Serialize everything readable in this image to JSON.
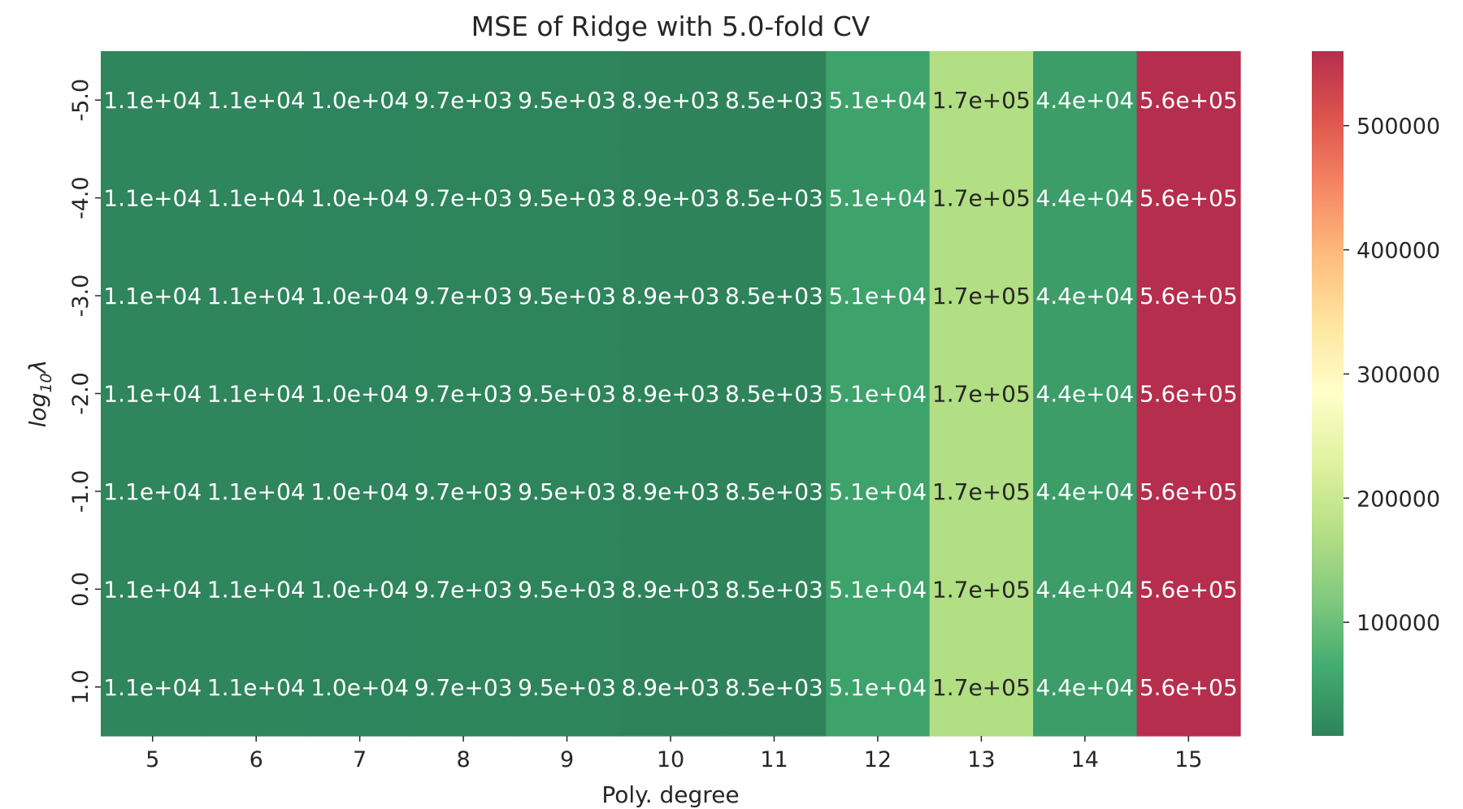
{
  "chart_data": {
    "type": "heatmap",
    "title": "MSE of Ridge with 5.0-fold CV",
    "xlabel": "Poly. degree",
    "ylabel_main": "log",
    "ylabel_sub": "10",
    "ylabel_greek": "λ",
    "x_categories": [
      "5",
      "6",
      "7",
      "8",
      "9",
      "10",
      "11",
      "12",
      "13",
      "14",
      "15"
    ],
    "y_categories": [
      "-5.0",
      "-4.0",
      "-3.0",
      "-2.0",
      "-1.0",
      "0.0",
      "1.0"
    ],
    "values": [
      [
        11000,
        11000,
        10000,
        9700,
        9500,
        8900,
        8500,
        51000,
        170000,
        44000,
        560000
      ],
      [
        11000,
        11000,
        10000,
        9700,
        9500,
        8900,
        8500,
        51000,
        170000,
        44000,
        560000
      ],
      [
        11000,
        11000,
        10000,
        9700,
        9500,
        8900,
        8500,
        51000,
        170000,
        44000,
        560000
      ],
      [
        11000,
        11000,
        10000,
        9700,
        9500,
        8900,
        8500,
        51000,
        170000,
        44000,
        560000
      ],
      [
        11000,
        11000,
        10000,
        9700,
        9500,
        8900,
        8500,
        51000,
        170000,
        44000,
        560000
      ],
      [
        11000,
        11000,
        10000,
        9700,
        9500,
        8900,
        8500,
        51000,
        170000,
        44000,
        560000
      ],
      [
        11000,
        11000,
        10000,
        9700,
        9500,
        8900,
        8500,
        51000,
        170000,
        44000,
        560000
      ]
    ],
    "annotations": [
      [
        "1.1e+04",
        "1.1e+04",
        "1.0e+04",
        "9.7e+03",
        "9.5e+03",
        "8.9e+03",
        "8.5e+03",
        "5.1e+04",
        "1.7e+05",
        "4.4e+04",
        "5.6e+05"
      ],
      [
        "1.1e+04",
        "1.1e+04",
        "1.0e+04",
        "9.7e+03",
        "9.5e+03",
        "8.9e+03",
        "8.5e+03",
        "5.1e+04",
        "1.7e+05",
        "4.4e+04",
        "5.6e+05"
      ],
      [
        "1.1e+04",
        "1.1e+04",
        "1.0e+04",
        "9.7e+03",
        "9.5e+03",
        "8.9e+03",
        "8.5e+03",
        "5.1e+04",
        "1.7e+05",
        "4.4e+04",
        "5.6e+05"
      ],
      [
        "1.1e+04",
        "1.1e+04",
        "1.0e+04",
        "9.7e+03",
        "9.5e+03",
        "8.9e+03",
        "8.5e+03",
        "5.1e+04",
        "1.7e+05",
        "4.4e+04",
        "5.6e+05"
      ],
      [
        "1.1e+04",
        "1.1e+04",
        "1.0e+04",
        "9.7e+03",
        "9.5e+03",
        "8.9e+03",
        "8.5e+03",
        "5.1e+04",
        "1.7e+05",
        "4.4e+04",
        "5.6e+05"
      ],
      [
        "1.1e+04",
        "1.1e+04",
        "1.0e+04",
        "9.7e+03",
        "9.5e+03",
        "8.9e+03",
        "8.5e+03",
        "5.1e+04",
        "1.7e+05",
        "4.4e+04",
        "5.6e+05"
      ],
      [
        "1.1e+04",
        "1.1e+04",
        "1.0e+04",
        "9.7e+03",
        "9.5e+03",
        "8.9e+03",
        "8.5e+03",
        "5.1e+04",
        "1.7e+05",
        "4.4e+04",
        "5.6e+05"
      ]
    ],
    "colorbar": {
      "colormap": "RdYlGn_r",
      "vmin": 8500,
      "vmax": 560000,
      "ticks": [
        100000,
        200000,
        300000,
        400000,
        500000
      ],
      "tick_labels": [
        "100000",
        "200000",
        "300000",
        "400000",
        "500000"
      ]
    },
    "colors": {
      "low": "#2e7b4a",
      "mid": "#fefebe",
      "high": "#a7292f",
      "dark_text": "#262626",
      "light_text": "#ffffff"
    }
  }
}
